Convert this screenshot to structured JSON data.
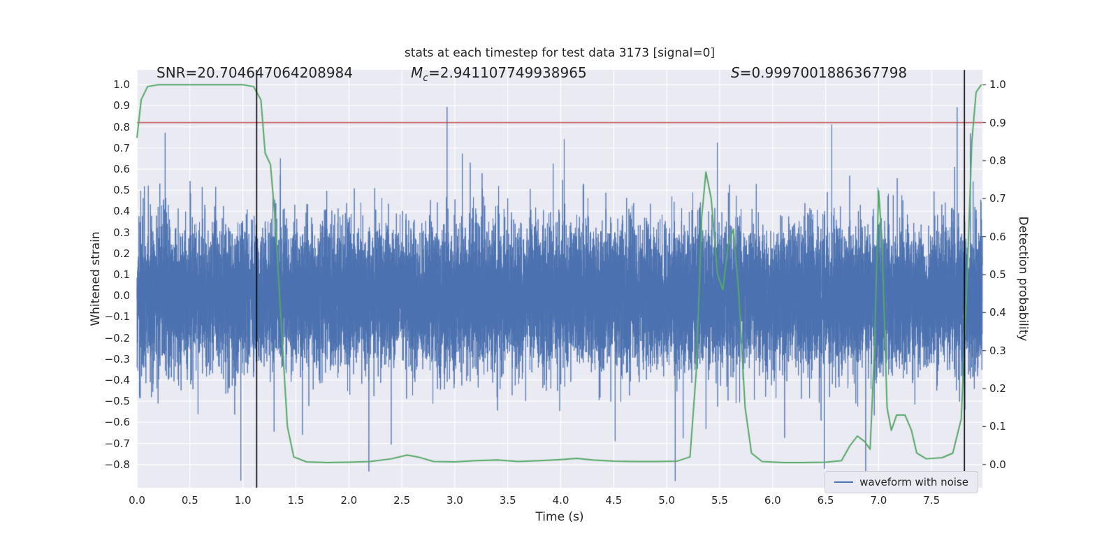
{
  "title": "stats at each timestep for test data 3173 [signal=0]",
  "annotations": {
    "snr": {
      "text": "SNR=20.704647064208984"
    },
    "mc": {
      "prefix": "M",
      "sub": "c",
      "rest": "=2.941107749938965"
    },
    "s": {
      "prefix": "S",
      "rest": "=0.9997001886367798"
    }
  },
  "legend": {
    "label": "waveform with noise"
  },
  "axes": {
    "xlabel": "Time (s)",
    "ylabel_left": "Whitened strain",
    "ylabel_right": "Detection probability",
    "x_tick_values": [
      0,
      0.5,
      1,
      1.5,
      2,
      2.5,
      3,
      3.5,
      4,
      4.5,
      5,
      5.5,
      6,
      6.5,
      7,
      7.5
    ],
    "x_tick_labels": [
      "0.0",
      "0.5",
      "1.0",
      "1.5",
      "2.0",
      "2.5",
      "3.0",
      "3.5",
      "4.0",
      "4.5",
      "5.0",
      "5.5",
      "6.0",
      "6.5",
      "7.0",
      "7.5"
    ],
    "y_tick_left_values": [
      1.0,
      0.9,
      0.8,
      0.7,
      0.6,
      0.5,
      0.4,
      0.3,
      0.2,
      0.1,
      0.0,
      -0.1,
      -0.2,
      -0.3,
      -0.4,
      -0.5,
      -0.6,
      -0.7,
      -0.8
    ],
    "y_tick_left_labels": [
      "1.0",
      "0.9",
      "0.8",
      "0.7",
      "0.6",
      "0.5",
      "0.4",
      "0.3",
      "0.2",
      "0.1",
      "0.0",
      "−0.1",
      "−0.2",
      "−0.3",
      "−0.4",
      "−0.5",
      "−0.6",
      "−0.7",
      "−0.8"
    ],
    "y_tick_right_values": [
      1.0,
      0.9,
      0.8,
      0.7,
      0.6,
      0.5,
      0.4,
      0.3,
      0.2,
      0.1,
      0.0
    ],
    "y_tick_right_labels": [
      "1.0",
      "0.9",
      "0.8",
      "0.7",
      "0.6",
      "0.5",
      "0.4",
      "0.3",
      "0.2",
      "0.1",
      "0.0"
    ]
  },
  "chart_data": {
    "type": "line",
    "title": "stats at each timestep for test data 3173 [signal=0]",
    "xlabel": "Time (s)",
    "ylabel_left": "Whitened strain",
    "ylabel_right": "Detection probability",
    "xlim": [
      0,
      7.98
    ],
    "ylim_left": [
      -0.91,
      1.07
    ],
    "right_map": {
      "strain_at_p0": -0.8,
      "strain_at_p1": 1.0
    },
    "grid": true,
    "plot_bg": "#eaeaf2",
    "grid_color": "#ffffff",
    "series": [
      {
        "name": "waveform with noise",
        "kind": "noise",
        "axis": "left",
        "color": "#4c72b0",
        "x_range": [
          0,
          7.98
        ],
        "sampling": {
          "seed": 3173,
          "n": 16384,
          "std": 0.165,
          "spike_prob": 0.0015,
          "spike_min": 0.55,
          "spike_max": 1.0
        }
      },
      {
        "name": "detection probability",
        "kind": "line",
        "axis": "right",
        "color": "#55a868",
        "points": [
          [
            0.0,
            0.86
          ],
          [
            0.04,
            0.96
          ],
          [
            0.1,
            0.995
          ],
          [
            0.2,
            1.0
          ],
          [
            0.6,
            1.0
          ],
          [
            1.0,
            1.0
          ],
          [
            1.1,
            0.995
          ],
          [
            1.17,
            0.96
          ],
          [
            1.21,
            0.82
          ],
          [
            1.26,
            0.79
          ],
          [
            1.3,
            0.66
          ],
          [
            1.36,
            0.38
          ],
          [
            1.42,
            0.1
          ],
          [
            1.48,
            0.02
          ],
          [
            1.6,
            0.007
          ],
          [
            1.8,
            0.005
          ],
          [
            2.0,
            0.006
          ],
          [
            2.2,
            0.008
          ],
          [
            2.4,
            0.015
          ],
          [
            2.55,
            0.025
          ],
          [
            2.65,
            0.02
          ],
          [
            2.8,
            0.008
          ],
          [
            3.0,
            0.007
          ],
          [
            3.2,
            0.01
          ],
          [
            3.4,
            0.012
          ],
          [
            3.6,
            0.008
          ],
          [
            3.8,
            0.01
          ],
          [
            4.0,
            0.013
          ],
          [
            4.15,
            0.016
          ],
          [
            4.3,
            0.012
          ],
          [
            4.5,
            0.009
          ],
          [
            4.7,
            0.008
          ],
          [
            4.9,
            0.008
          ],
          [
            5.1,
            0.009
          ],
          [
            5.22,
            0.02
          ],
          [
            5.28,
            0.25
          ],
          [
            5.33,
            0.65
          ],
          [
            5.37,
            0.77
          ],
          [
            5.42,
            0.7
          ],
          [
            5.48,
            0.5
          ],
          [
            5.53,
            0.46
          ],
          [
            5.58,
            0.58
          ],
          [
            5.63,
            0.62
          ],
          [
            5.68,
            0.45
          ],
          [
            5.74,
            0.15
          ],
          [
            5.8,
            0.03
          ],
          [
            5.9,
            0.008
          ],
          [
            6.1,
            0.005
          ],
          [
            6.3,
            0.005
          ],
          [
            6.5,
            0.006
          ],
          [
            6.65,
            0.01
          ],
          [
            6.73,
            0.05
          ],
          [
            6.8,
            0.075
          ],
          [
            6.87,
            0.06
          ],
          [
            6.92,
            0.04
          ],
          [
            6.96,
            0.3
          ],
          [
            7.0,
            0.72
          ],
          [
            7.03,
            0.6
          ],
          [
            7.08,
            0.15
          ],
          [
            7.12,
            0.09
          ],
          [
            7.17,
            0.13
          ],
          [
            7.25,
            0.13
          ],
          [
            7.31,
            0.09
          ],
          [
            7.36,
            0.03
          ],
          [
            7.45,
            0.015
          ],
          [
            7.6,
            0.018
          ],
          [
            7.7,
            0.03
          ],
          [
            7.78,
            0.12
          ],
          [
            7.83,
            0.45
          ],
          [
            7.88,
            0.85
          ],
          [
            7.92,
            0.98
          ],
          [
            7.97,
            1.0
          ]
        ]
      }
    ],
    "threshold_line": {
      "axis": "right",
      "value": 0.9,
      "color": "#c44e52"
    },
    "vlines": [
      {
        "x": 1.13
      },
      {
        "x": 7.81
      }
    ],
    "vline_color": "#000000"
  }
}
